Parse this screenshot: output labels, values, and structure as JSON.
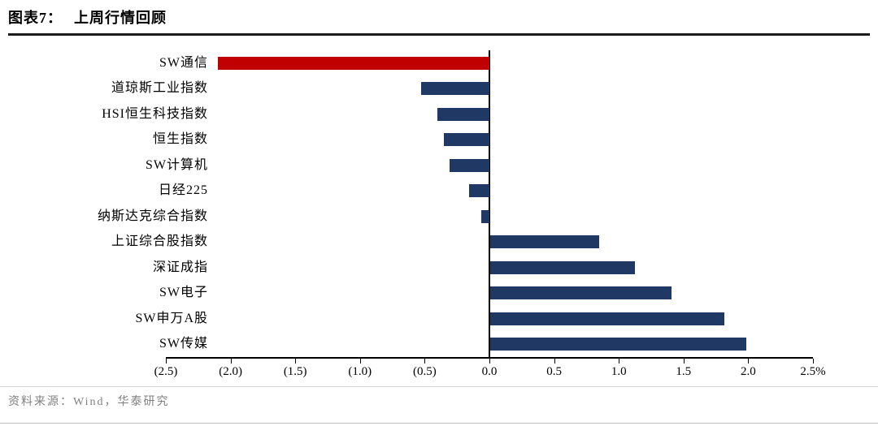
{
  "header": {
    "figure_label": "图表7：",
    "title": "上周行情回顾"
  },
  "chart_data": {
    "type": "bar",
    "orientation": "horizontal",
    "title": "上周行情回顾",
    "unit": "%",
    "categories": [
      "SW通信",
      "道琼斯工业指数",
      "HSI恒生科技指数",
      "恒生指数",
      "SW计算机",
      "日经225",
      "纳斯达克综合指数",
      "上证综合股指数",
      "深证成指",
      "SW电子",
      "SW申万A股",
      "SW传媒"
    ],
    "values": [
      -2.1,
      -0.53,
      -0.4,
      -0.35,
      -0.31,
      -0.16,
      -0.06,
      0.84,
      1.12,
      1.4,
      1.81,
      1.98
    ],
    "xlim": [
      -2.5,
      2.5
    ],
    "x_tick_step": 0.5,
    "x_tick_labels": [
      "(2.5)",
      "(2.0)",
      "(1.5)",
      "(1.0)",
      "(0.5)",
      "0.0",
      "0.5",
      "1.0",
      "1.5",
      "2.0",
      "2.5%"
    ],
    "bar_color": "#1F3864",
    "highlight_category": "SW通信",
    "highlight_color": "#C00000",
    "grid": false,
    "legend": false
  },
  "footer": {
    "source": "资料来源：Wind，华泰研究"
  }
}
